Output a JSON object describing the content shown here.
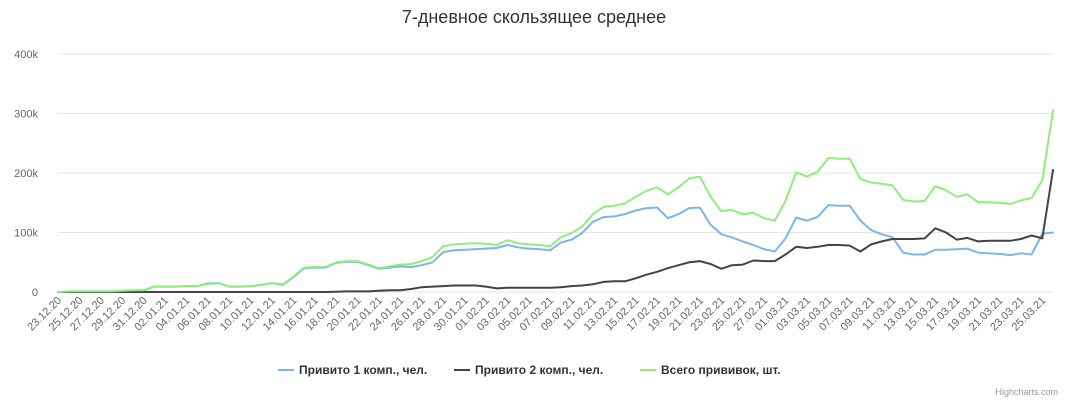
{
  "chart_data": {
    "type": "line",
    "title": "7-дневное скользящее среднее",
    "xlabel": "",
    "ylabel": "",
    "ylim": [
      0,
      400000
    ],
    "yticks": [
      {
        "value": 0,
        "label": "0"
      },
      {
        "value": 100000,
        "label": "100k"
      },
      {
        "value": 200000,
        "label": "200k"
      },
      {
        "value": 300000,
        "label": "300k"
      },
      {
        "value": 400000,
        "label": "400k"
      }
    ],
    "x": [
      "23.12.20",
      "24.12.20",
      "25.12.20",
      "26.12.20",
      "27.12.20",
      "28.12.20",
      "29.12.20",
      "30.12.20",
      "31.12.20",
      "01.01.21",
      "02.01.21",
      "03.01.21",
      "04.01.21",
      "05.01.21",
      "06.01.21",
      "07.01.21",
      "08.01.21",
      "09.01.21",
      "10.01.21",
      "11.01.21",
      "12.01.21",
      "13.01.21",
      "14.01.21",
      "15.01.21",
      "16.01.21",
      "17.01.21",
      "18.01.21",
      "19.01.21",
      "20.01.21",
      "21.01.21",
      "22.01.21",
      "23.01.21",
      "24.01.21",
      "25.01.21",
      "26.01.21",
      "27.01.21",
      "28.01.21",
      "29.01.21",
      "30.01.21",
      "31.01.21",
      "01.02.21",
      "02.02.21",
      "03.02.21",
      "04.02.21",
      "05.02.21",
      "06.02.21",
      "07.02.21",
      "08.02.21",
      "09.02.21",
      "10.02.21",
      "11.02.21",
      "12.02.21",
      "13.02.21",
      "14.02.21",
      "15.02.21",
      "16.02.21",
      "17.02.21",
      "18.02.21",
      "19.02.21",
      "20.02.21",
      "21.02.21",
      "22.02.21",
      "23.02.21",
      "24.02.21",
      "25.02.21",
      "26.02.21",
      "27.02.21",
      "28.02.21",
      "01.03.21",
      "02.03.21",
      "03.03.21",
      "04.03.21",
      "05.03.21",
      "06.03.21",
      "07.03.21",
      "08.03.21",
      "09.03.21",
      "10.03.21",
      "11.03.21",
      "12.03.21",
      "13.03.21",
      "14.03.21",
      "15.03.21",
      "16.03.21",
      "17.03.21",
      "18.03.21",
      "19.03.21",
      "20.03.21",
      "21.03.21",
      "22.03.21",
      "23.03.21",
      "24.03.21",
      "25.03.21",
      "26.03.21"
    ],
    "xtick_labels": [
      "23.12.20",
      "25.12.20",
      "27.12.20",
      "29.12.20",
      "31.12.20",
      "02.01.21",
      "04.01.21",
      "06.01.21",
      "08.01.21",
      "10.01.21",
      "12.01.21",
      "14.01.21",
      "16.01.21",
      "18.01.21",
      "20.01.21",
      "22.01.21",
      "24.01.21",
      "26.01.21",
      "28.01.21",
      "30.01.21",
      "01.02.21",
      "03.02.21",
      "05.02.21",
      "07.02.21",
      "09.02.21",
      "11.02.21",
      "13.02.21",
      "15.02.21",
      "17.02.21",
      "19.02.21",
      "21.02.21",
      "23.02.21",
      "25.02.21",
      "27.02.21",
      "01.03.21",
      "03.03.21",
      "05.03.21",
      "07.03.21",
      "09.03.21",
      "11.03.21",
      "13.03.21",
      "15.03.21",
      "17.03.21",
      "19.03.21",
      "21.03.21",
      "23.03.21",
      "25.03.21"
    ],
    "series": [
      {
        "name": "Привито 1 комп., чел.",
        "color": "#7cb5ec",
        "values": [
          0,
          1000,
          1000,
          1000,
          1000,
          1000,
          2000,
          2000,
          2000,
          9000,
          9000,
          9000,
          10000,
          10000,
          14000,
          15000,
          9000,
          9000,
          10000,
          12000,
          15000,
          12000,
          25000,
          40000,
          41000,
          41000,
          49000,
          51000,
          51000,
          45000,
          39000,
          41000,
          43000,
          42000,
          45000,
          50000,
          67000,
          70000,
          71000,
          72000,
          73000,
          74000,
          79000,
          75000,
          73000,
          72000,
          70000,
          83000,
          88000,
          99000,
          118000,
          126000,
          127000,
          131000,
          137000,
          141000,
          142000,
          124000,
          131000,
          141000,
          142000,
          113000,
          97000,
          92000,
          85000,
          79000,
          72000,
          68000,
          90000,
          125000,
          120000,
          126000,
          146000,
          145000,
          145000,
          120000,
          104000,
          97000,
          92000,
          66000,
          63000,
          63000,
          71000,
          71000,
          72000,
          73000,
          66000,
          65000,
          64000,
          62000,
          65000,
          63000,
          98000,
          100000
        ]
      },
      {
        "name": "Привито 2 комп., чел.",
        "color": "#434348",
        "values": [
          0,
          0,
          0,
          0,
          0,
          0,
          0,
          0,
          0,
          0,
          0,
          0,
          0,
          0,
          0,
          0,
          0,
          0,
          0,
          0,
          0,
          0,
          0,
          0,
          0,
          0,
          500,
          1000,
          1000,
          1000,
          2000,
          3000,
          3000,
          5000,
          8000,
          9000,
          10000,
          11000,
          11000,
          11000,
          9000,
          6000,
          7000,
          7000,
          7000,
          7000,
          7000,
          8000,
          10000,
          11000,
          13000,
          17000,
          18000,
          18000,
          23000,
          29000,
          34000,
          40000,
          45000,
          50000,
          52000,
          47000,
          39000,
          45000,
          46000,
          53000,
          52000,
          52000,
          63000,
          76000,
          74000,
          76000,
          79000,
          79000,
          78000,
          68000,
          80000,
          85000,
          89000,
          89000,
          89000,
          90000,
          107000,
          100000,
          88000,
          91000,
          85000,
          86000,
          86000,
          86000,
          89000,
          95000,
          90000,
          205000
        ]
      },
      {
        "name": "Всего прививок, шт.",
        "color": "#90ed7d",
        "values": [
          0,
          1000,
          1000,
          1000,
          1000,
          1000,
          2000,
          3000,
          3000,
          9000,
          9000,
          9000,
          10000,
          10000,
          15000,
          15000,
          9000,
          9000,
          10000,
          12000,
          15000,
          13000,
          26000,
          41000,
          42000,
          42000,
          50000,
          52000,
          52000,
          46000,
          40000,
          43000,
          46000,
          47000,
          52000,
          59000,
          77000,
          80000,
          81000,
          82000,
          81000,
          79000,
          87000,
          82000,
          80000,
          79000,
          77000,
          92000,
          99000,
          110000,
          131000,
          143000,
          145000,
          149000,
          160000,
          170000,
          176000,
          164000,
          176000,
          191000,
          194000,
          160000,
          136000,
          138000,
          131000,
          133000,
          124000,
          120000,
          153000,
          201000,
          194000,
          202000,
          225000,
          224000,
          224000,
          190000,
          184000,
          182000,
          179000,
          155000,
          152000,
          153000,
          178000,
          171000,
          160000,
          164000,
          151000,
          151000,
          150000,
          148000,
          154000,
          158000,
          188000,
          305000
        ]
      }
    ],
    "legend_position": "bottom-center",
    "grid": true,
    "credits": "Highcharts.com"
  }
}
